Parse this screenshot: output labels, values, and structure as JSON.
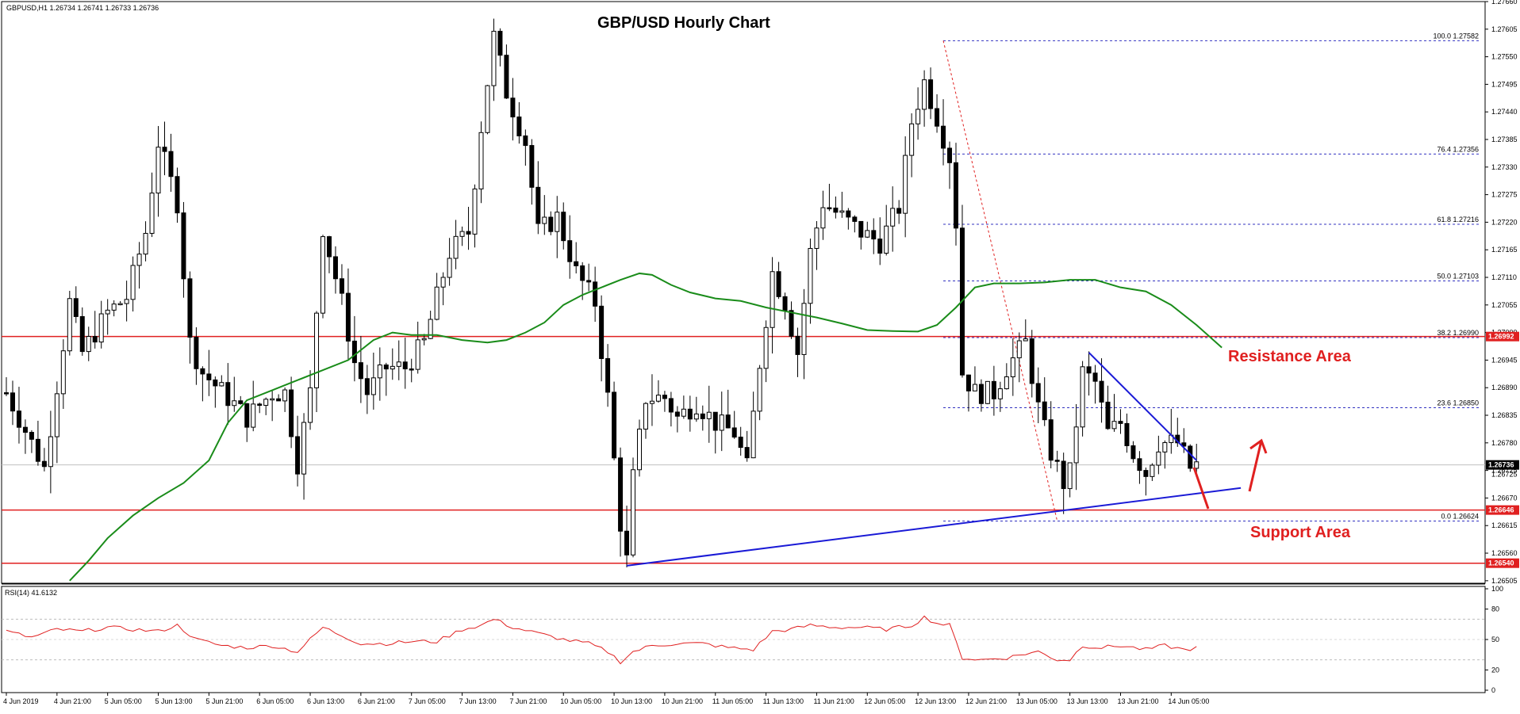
{
  "header": {
    "symbol_info": "GBPUSD,H1  1.26734 1.26741 1.26733 1.26736",
    "title": "GBP/USD Hourly Chart"
  },
  "colors": {
    "bull": "#ffffff",
    "bear": "#000000",
    "ma": "#1a8c1a",
    "level": "#e02020",
    "trend": "#1a1ad6",
    "fib": "#3030c0",
    "rsi": "#e02020"
  },
  "annotations": {
    "resistance_label": "Resistance Area",
    "support_label": "Support Area"
  },
  "chart_data": [
    {
      "type": "candlestick",
      "title": "GBP/USD Hourly Chart",
      "ylim": [
        1.265,
        1.2766
      ],
      "price_axis_ticks": [
        "1.27660",
        "1.27605",
        "1.27550",
        "1.27495",
        "1.27440",
        "1.27385",
        "1.27330",
        "1.27275",
        "1.27220",
        "1.27165",
        "1.27110",
        "1.27055",
        "1.27000",
        "1.26945",
        "1.26890",
        "1.26835",
        "1.26780",
        "1.26725",
        "1.26670",
        "1.26615",
        "1.26560",
        "1.26505"
      ],
      "price_axis_values": [
        1.2766,
        1.27605,
        1.2755,
        1.27495,
        1.2744,
        1.27385,
        1.2733,
        1.27275,
        1.2722,
        1.27165,
        1.2711,
        1.27055,
        1.27,
        1.26945,
        1.2689,
        1.26835,
        1.2678,
        1.26725,
        1.2667,
        1.26615,
        1.2656,
        1.26505
      ],
      "time_axis_labels": [
        "4 Jun 2019",
        "4 Jun 21:00",
        "5 Jun 05:00",
        "5 Jun 13:00",
        "5 Jun 21:00",
        "6 Jun 05:00",
        "6 Jun 13:00",
        "6 Jun 21:00",
        "7 Jun 05:00",
        "7 Jun 13:00",
        "7 Jun 21:00",
        "10 Jun 05:00",
        "10 Jun 13:00",
        "10 Jun 21:00",
        "11 Jun 05:00",
        "11 Jun 13:00",
        "11 Jun 21:00",
        "12 Jun 05:00",
        "12 Jun 13:00",
        "12 Jun 21:00",
        "13 Jun 05:00",
        "13 Jun 13:00",
        "13 Jun 21:00",
        "14 Jun 05:00"
      ],
      "time_axis_index": [
        0,
        8,
        16,
        24,
        32,
        40,
        48,
        56,
        64,
        72,
        80,
        88,
        96,
        104,
        112,
        120,
        128,
        136,
        144,
        152,
        160,
        168,
        176,
        184
      ],
      "horizontal_levels": [
        {
          "price": 1.26992,
          "label": "1.26992"
        },
        {
          "price": 1.26646,
          "label": "1.26646"
        },
        {
          "price": 1.2654,
          "label": "1.26540"
        }
      ],
      "current_price": {
        "price": 1.26736,
        "label": "1.26736",
        "secondary_label": "1.26725"
      },
      "fibonacci": {
        "high": 1.27582,
        "low": 1.26624,
        "levels": [
          {
            "label": "100.0 1.27582",
            "price": 1.27582
          },
          {
            "label": "76.4 1.27356",
            "price": 1.27356
          },
          {
            "label": "61.8 1.27216",
            "price": 1.27216
          },
          {
            "label": "50.0 1.27103",
            "price": 1.27103
          },
          {
            "label": "38.2 1.26990",
            "price": 1.2699
          },
          {
            "label": "23.6 1.26850",
            "price": 1.2685
          },
          {
            "label": "0.0 1.26624",
            "price": 1.26624
          }
        ]
      },
      "trendlines": [
        {
          "from": {
            "i": 98,
            "p": 1.26535
          },
          "to": {
            "i": 195,
            "p": 1.2669
          }
        },
        {
          "from": {
            "i": 171,
            "p": 1.2696
          },
          "to": {
            "i": 188,
            "p": 1.26745
          }
        }
      ],
      "ma_series": [
        {
          "i": 10,
          "p": 1.26505
        },
        {
          "i": 13,
          "p": 1.26545
        },
        {
          "i": 16,
          "p": 1.2659
        },
        {
          "i": 20,
          "p": 1.26635
        },
        {
          "i": 24,
          "p": 1.2667
        },
        {
          "i": 28,
          "p": 1.267
        },
        {
          "i": 32,
          "p": 1.26745
        },
        {
          "i": 35,
          "p": 1.2682
        },
        {
          "i": 38,
          "p": 1.26865
        },
        {
          "i": 42,
          "p": 1.26885
        },
        {
          "i": 46,
          "p": 1.26905
        },
        {
          "i": 50,
          "p": 1.26925
        },
        {
          "i": 54,
          "p": 1.26945
        },
        {
          "i": 58,
          "p": 1.26985
        },
        {
          "i": 61,
          "p": 1.27
        },
        {
          "i": 64,
          "p": 1.26995
        },
        {
          "i": 68,
          "p": 1.26995
        },
        {
          "i": 72,
          "p": 1.26985
        },
        {
          "i": 76,
          "p": 1.2698
        },
        {
          "i": 79,
          "p": 1.26985
        },
        {
          "i": 82,
          "p": 1.27
        },
        {
          "i": 85,
          "p": 1.2702
        },
        {
          "i": 88,
          "p": 1.27055
        },
        {
          "i": 91,
          "p": 1.27075
        },
        {
          "i": 94,
          "p": 1.2709
        },
        {
          "i": 97,
          "p": 1.27105
        },
        {
          "i": 100,
          "p": 1.27118
        },
        {
          "i": 102,
          "p": 1.27115
        },
        {
          "i": 105,
          "p": 1.27095
        },
        {
          "i": 108,
          "p": 1.2708
        },
        {
          "i": 112,
          "p": 1.27068
        },
        {
          "i": 116,
          "p": 1.27063
        },
        {
          "i": 120,
          "p": 1.2705
        },
        {
          "i": 124,
          "p": 1.2704
        },
        {
          "i": 128,
          "p": 1.2703
        },
        {
          "i": 132,
          "p": 1.27018
        },
        {
          "i": 136,
          "p": 1.27005
        },
        {
          "i": 140,
          "p": 1.27003
        },
        {
          "i": 144,
          "p": 1.27002
        },
        {
          "i": 147,
          "p": 1.27015
        },
        {
          "i": 150,
          "p": 1.2705
        },
        {
          "i": 153,
          "p": 1.2709
        },
        {
          "i": 156,
          "p": 1.27098
        },
        {
          "i": 160,
          "p": 1.27098
        },
        {
          "i": 164,
          "p": 1.271
        },
        {
          "i": 168,
          "p": 1.27105
        },
        {
          "i": 172,
          "p": 1.27105
        },
        {
          "i": 176,
          "p": 1.2709
        },
        {
          "i": 180,
          "p": 1.27082
        },
        {
          "i": 184,
          "p": 1.27055
        },
        {
          "i": 188,
          "p": 1.27015
        },
        {
          "i": 192,
          "p": 1.2697
        }
      ],
      "ohlc_keypoints": [
        {
          "i": 0,
          "p": 1.2688
        },
        {
          "i": 4,
          "p": 1.2678
        },
        {
          "i": 6,
          "p": 1.2673
        },
        {
          "i": 10,
          "p": 1.2706
        },
        {
          "i": 12,
          "p": 1.2696
        },
        {
          "i": 14,
          "p": 1.27
        },
        {
          "i": 16,
          "p": 1.2704
        },
        {
          "i": 19,
          "p": 1.2707
        },
        {
          "i": 22,
          "p": 1.272
        },
        {
          "i": 24,
          "p": 1.2738
        },
        {
          "i": 27,
          "p": 1.2726
        },
        {
          "i": 29,
          "p": 1.2698
        },
        {
          "i": 31,
          "p": 1.2692
        },
        {
          "i": 35,
          "p": 1.2687
        },
        {
          "i": 38,
          "p": 1.2683
        },
        {
          "i": 42,
          "p": 1.2688
        },
        {
          "i": 44,
          "p": 1.2688
        },
        {
          "i": 46,
          "p": 1.2674
        },
        {
          "i": 48,
          "p": 1.2688
        },
        {
          "i": 50,
          "p": 1.2721
        },
        {
          "i": 53,
          "p": 1.2706
        },
        {
          "i": 55,
          "p": 1.2694
        },
        {
          "i": 57,
          "p": 1.2688
        },
        {
          "i": 60,
          "p": 1.2693
        },
        {
          "i": 63,
          "p": 1.2693
        },
        {
          "i": 66,
          "p": 1.2698
        },
        {
          "i": 70,
          "p": 1.2716
        },
        {
          "i": 73,
          "p": 1.272
        },
        {
          "i": 75,
          "p": 1.2741
        },
        {
          "i": 77,
          "p": 1.2759
        },
        {
          "i": 79,
          "p": 1.2748
        },
        {
          "i": 82,
          "p": 1.2738
        },
        {
          "i": 84,
          "p": 1.272
        },
        {
          "i": 87,
          "p": 1.2723
        },
        {
          "i": 90,
          "p": 1.2712
        },
        {
          "i": 93,
          "p": 1.2706
        },
        {
          "i": 95,
          "p": 1.2687
        },
        {
          "i": 97,
          "p": 1.2662
        },
        {
          "i": 98,
          "p": 1.26545
        },
        {
          "i": 99,
          "p": 1.2671
        },
        {
          "i": 101,
          "p": 1.2687
        },
        {
          "i": 104,
          "p": 1.2687
        },
        {
          "i": 106,
          "p": 1.2683
        },
        {
          "i": 109,
          "p": 1.2686
        },
        {
          "i": 112,
          "p": 1.2682
        },
        {
          "i": 115,
          "p": 1.268
        },
        {
          "i": 117,
          "p": 1.2673
        },
        {
          "i": 119,
          "p": 1.2694
        },
        {
          "i": 121,
          "p": 1.2712
        },
        {
          "i": 123,
          "p": 1.2706
        },
        {
          "i": 125,
          "p": 1.2696
        },
        {
          "i": 127,
          "p": 1.2716
        },
        {
          "i": 129,
          "p": 1.2726
        },
        {
          "i": 132,
          "p": 1.2723
        },
        {
          "i": 135,
          "p": 1.272
        },
        {
          "i": 138,
          "p": 1.2718
        },
        {
          "i": 141,
          "p": 1.2725
        },
        {
          "i": 143,
          "p": 1.2742
        },
        {
          "i": 145,
          "p": 1.275
        },
        {
          "i": 147,
          "p": 1.2743
        },
        {
          "i": 149,
          "p": 1.2735
        },
        {
          "i": 150,
          "p": 1.2722
        },
        {
          "i": 151,
          "p": 1.2692
        },
        {
          "i": 153,
          "p": 1.2688
        },
        {
          "i": 156,
          "p": 1.2688
        },
        {
          "i": 158,
          "p": 1.2693
        },
        {
          "i": 161,
          "p": 1.2698
        },
        {
          "i": 163,
          "p": 1.2685
        },
        {
          "i": 165,
          "p": 1.2676
        },
        {
          "i": 167,
          "p": 1.267
        },
        {
          "i": 168,
          "p": 1.2672
        },
        {
          "i": 170,
          "p": 1.2692
        },
        {
          "i": 172,
          "p": 1.269
        },
        {
          "i": 174,
          "p": 1.268
        },
        {
          "i": 176,
          "p": 1.2682
        },
        {
          "i": 178,
          "p": 1.2676
        },
        {
          "i": 180,
          "p": 1.2672
        },
        {
          "i": 182,
          "p": 1.2678
        },
        {
          "i": 185,
          "p": 1.2678
        },
        {
          "i": 187,
          "p": 1.2673
        },
        {
          "i": 188,
          "p": 1.26736
        }
      ]
    },
    {
      "type": "line",
      "title": "RSI(14) 41.6132",
      "ylim": [
        0,
        100
      ],
      "ticks": [
        "100",
        "80",
        "50",
        "20",
        "0"
      ],
      "tick_values": [
        100,
        80,
        50,
        20,
        0
      ],
      "levels": [
        70,
        30
      ],
      "series": [
        {
          "values_keypoints": [
            {
              "i": 0,
              "v": 58
            },
            {
              "i": 4,
              "v": 52
            },
            {
              "i": 8,
              "v": 60
            },
            {
              "i": 12,
              "v": 58
            },
            {
              "i": 16,
              "v": 62
            },
            {
              "i": 20,
              "v": 60
            },
            {
              "i": 24,
              "v": 58
            },
            {
              "i": 27,
              "v": 64
            },
            {
              "i": 30,
              "v": 50
            },
            {
              "i": 34,
              "v": 44
            },
            {
              "i": 38,
              "v": 42
            },
            {
              "i": 42,
              "v": 44
            },
            {
              "i": 46,
              "v": 38
            },
            {
              "i": 50,
              "v": 62
            },
            {
              "i": 53,
              "v": 54
            },
            {
              "i": 56,
              "v": 46
            },
            {
              "i": 60,
              "v": 46
            },
            {
              "i": 64,
              "v": 48
            },
            {
              "i": 68,
              "v": 48
            },
            {
              "i": 72,
              "v": 60
            },
            {
              "i": 75,
              "v": 64
            },
            {
              "i": 77,
              "v": 70
            },
            {
              "i": 80,
              "v": 62
            },
            {
              "i": 84,
              "v": 56
            },
            {
              "i": 88,
              "v": 50
            },
            {
              "i": 92,
              "v": 46
            },
            {
              "i": 95,
              "v": 38
            },
            {
              "i": 97,
              "v": 28
            },
            {
              "i": 99,
              "v": 38
            },
            {
              "i": 102,
              "v": 44
            },
            {
              "i": 106,
              "v": 46
            },
            {
              "i": 110,
              "v": 46
            },
            {
              "i": 114,
              "v": 42
            },
            {
              "i": 118,
              "v": 40
            },
            {
              "i": 121,
              "v": 58
            },
            {
              "i": 124,
              "v": 60
            },
            {
              "i": 127,
              "v": 64
            },
            {
              "i": 131,
              "v": 62
            },
            {
              "i": 135,
              "v": 62
            },
            {
              "i": 139,
              "v": 60
            },
            {
              "i": 143,
              "v": 64
            },
            {
              "i": 145,
              "v": 72
            },
            {
              "i": 147,
              "v": 66
            },
            {
              "i": 149,
              "v": 64
            },
            {
              "i": 151,
              "v": 32
            },
            {
              "i": 154,
              "v": 30
            },
            {
              "i": 158,
              "v": 32
            },
            {
              "i": 161,
              "v": 36
            },
            {
              "i": 163,
              "v": 38
            },
            {
              "i": 166,
              "v": 30
            },
            {
              "i": 168,
              "v": 30
            },
            {
              "i": 170,
              "v": 44
            },
            {
              "i": 173,
              "v": 42
            },
            {
              "i": 176,
              "v": 44
            },
            {
              "i": 180,
              "v": 40
            },
            {
              "i": 183,
              "v": 44
            },
            {
              "i": 186,
              "v": 40
            },
            {
              "i": 188,
              "v": 41.6
            }
          ]
        }
      ]
    }
  ]
}
